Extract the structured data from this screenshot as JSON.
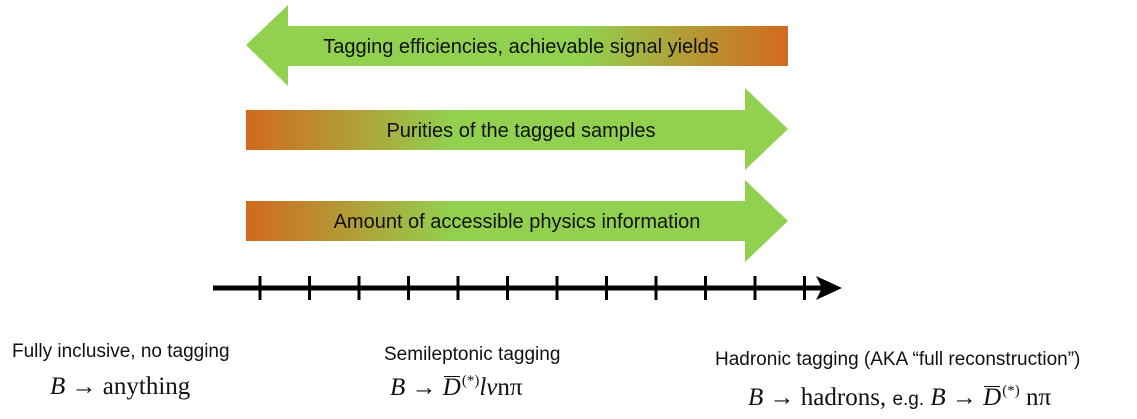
{
  "arrows": [
    {
      "label": "Tagging efficiencies, achievable signal yields",
      "direction": "left"
    },
    {
      "label": "Purities of the tagged samples",
      "direction": "right"
    },
    {
      "label": "Amount of accessible physics information",
      "direction": "right"
    }
  ],
  "colors": {
    "green": "#92d050",
    "orange": "#d2691e",
    "axis": "#000000"
  },
  "axis": {
    "tick_count": 12
  },
  "categories": [
    {
      "title": "Fully inclusive, no tagging",
      "formula": "B → anything"
    },
    {
      "title": "Semileptonic tagging",
      "formula": "B → D̄(*) lν nπ"
    },
    {
      "title": "Hadronic tagging (AKA “full reconstruction”)",
      "formula": "B → hadrons, e.g. B → D̄(*) nπ",
      "eg_text": "e.g."
    }
  ]
}
